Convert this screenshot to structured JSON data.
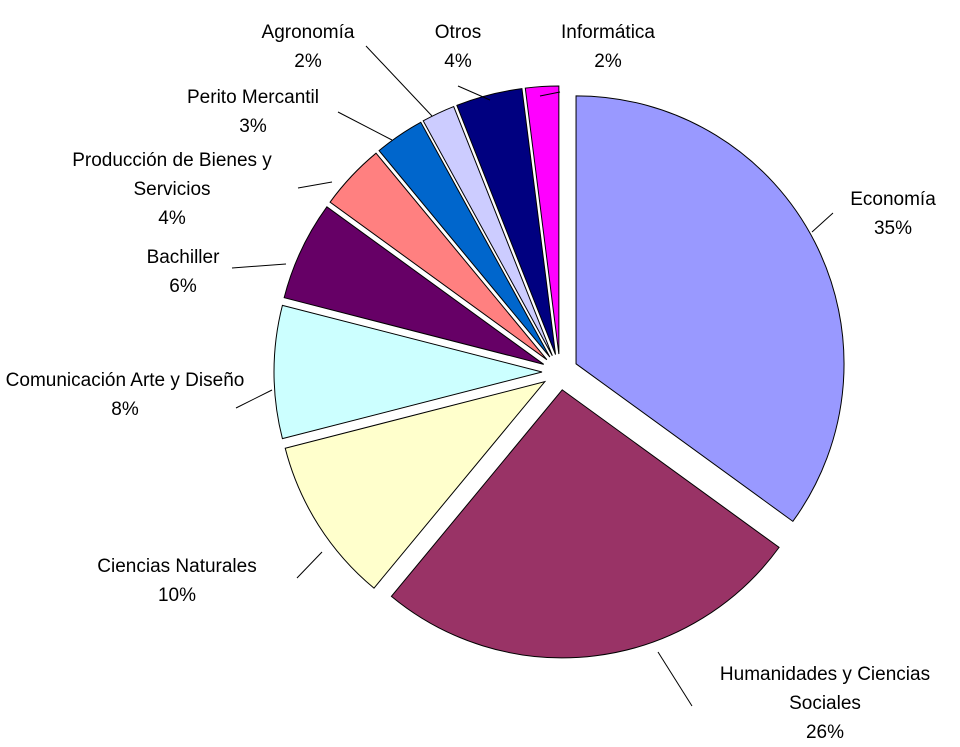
{
  "chart_data": {
    "type": "pie",
    "categories": [
      "Economía",
      "Humanidades y Ciencias Sociales",
      "Ciencias Naturales",
      "Comunicación Arte y Diseño",
      "Bachiller",
      "Producción de Bienes y Servicios",
      "Perito Mercantil",
      "Agronomía",
      "Otros",
      "Informática"
    ],
    "values": [
      35,
      26,
      10,
      8,
      6,
      4,
      3,
      2,
      4,
      2
    ],
    "value_labels": [
      "35%",
      "26%",
      "10%",
      "8%",
      "6%",
      "4%",
      "3%",
      "2%",
      "4%",
      "2%"
    ],
    "colors": [
      "#9999ff",
      "#993366",
      "#ffffcc",
      "#ccffff",
      "#660066",
      "#ff8080",
      "#0066cc",
      "#ccccff",
      "#000080",
      "#ff00ff"
    ]
  }
}
